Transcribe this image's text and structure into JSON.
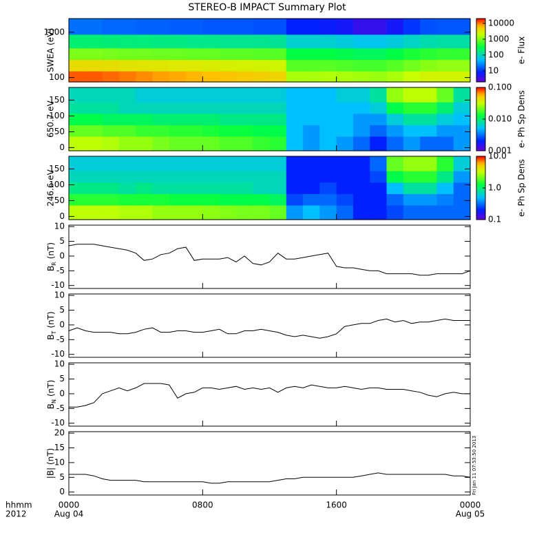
{
  "title": "STEREO-B IMPACT Summary Plot",
  "x_axis": {
    "xlim": [
      0,
      24
    ],
    "xticks": [
      {
        "value": 0,
        "label": "0000"
      },
      {
        "value": 8,
        "label": "0800"
      },
      {
        "value": 16,
        "label": "1600"
      },
      {
        "value": 24,
        "label": "0000"
      }
    ],
    "unit_label": "hhmm",
    "year": "2012",
    "start_date": "Aug 04",
    "end_date": "Aug 05"
  },
  "timestamp": "Fri Jan 11 07:53:50 2013",
  "chart_data": [
    {
      "type": "heatmap",
      "ylabel": "SWEA (eV)",
      "ylog": true,
      "ylim": [
        80,
        2000
      ],
      "yticks": [
        100,
        1000
      ],
      "xbins": [
        0,
        1,
        2,
        3,
        4,
        5,
        6,
        7,
        8,
        9,
        10,
        11,
        12,
        13,
        14,
        15,
        16,
        17,
        18,
        19,
        20,
        21,
        22,
        23,
        24
      ],
      "ybins": [
        80,
        140,
        250,
        450,
        900,
        2000
      ],
      "values": [
        [
          12000,
          12000,
          11000,
          10000,
          9000,
          8000,
          7500,
          7000,
          6500,
          6000,
          5500,
          5000,
          4500,
          1500,
          1500,
          1600,
          1500,
          1400,
          1300,
          1500,
          2000,
          2500,
          2500,
          2500
        ],
        [
          4000,
          4000,
          3800,
          3500,
          3300,
          3200,
          3000,
          3000,
          2800,
          2700,
          2600,
          2500,
          2400,
          700,
          700,
          700,
          650,
          600,
          600,
          700,
          900,
          1100,
          1200,
          1200
        ],
        [
          1000,
          1000,
          950,
          900,
          900,
          850,
          850,
          800,
          800,
          750,
          750,
          700,
          700,
          300,
          300,
          300,
          280,
          250,
          250,
          300,
          400,
          450,
          500,
          500
        ],
        [
          200,
          200,
          190,
          180,
          180,
          170,
          170,
          160,
          160,
          150,
          150,
          150,
          140,
          80,
          80,
          80,
          70,
          60,
          60,
          70,
          90,
          110,
          120,
          120
        ],
        [
          20,
          20,
          18,
          18,
          17,
          17,
          16,
          16,
          15,
          15,
          15,
          14,
          14,
          8,
          8,
          7,
          6,
          4,
          4,
          6,
          10,
          14,
          15,
          15
        ]
      ],
      "clim": [
        2,
        20000
      ],
      "clog": true,
      "cticks": [
        10,
        100,
        1000,
        10000
      ],
      "clabel": "e- Flux"
    },
    {
      "type": "heatmap",
      "ylabel": "650.7 eV",
      "ylog": false,
      "ylim": [
        -10,
        190
      ],
      "yticks": [
        0,
        50,
        100,
        150
      ],
      "xbins": [
        0,
        1,
        2,
        3,
        4,
        5,
        6,
        7,
        8,
        9,
        10,
        11,
        12,
        13,
        14,
        15,
        16,
        17,
        18,
        19,
        20,
        21,
        22,
        23,
        24
      ],
      "ybins": [
        -10,
        36,
        72,
        108,
        144,
        190
      ],
      "values": [
        [
          0.03,
          0.03,
          0.028,
          0.025,
          0.025,
          0.022,
          0.02,
          0.02,
          0.02,
          0.018,
          0.018,
          0.016,
          0.015,
          0.005,
          0.004,
          0.005,
          0.004,
          0.003,
          0.002,
          0.003,
          0.004,
          0.003,
          0.003,
          0.004
        ],
        [
          0.02,
          0.02,
          0.018,
          0.018,
          0.016,
          0.016,
          0.015,
          0.015,
          0.014,
          0.013,
          0.013,
          0.012,
          0.012,
          0.005,
          0.004,
          0.005,
          0.005,
          0.004,
          0.003,
          0.004,
          0.005,
          0.005,
          0.004,
          0.004
        ],
        [
          0.012,
          0.012,
          0.011,
          0.011,
          0.011,
          0.01,
          0.01,
          0.01,
          0.01,
          0.009,
          0.009,
          0.009,
          0.009,
          0.005,
          0.005,
          0.005,
          0.005,
          0.004,
          0.004,
          0.006,
          0.008,
          0.008,
          0.006,
          0.005
        ],
        [
          0.008,
          0.008,
          0.008,
          0.007,
          0.007,
          0.007,
          0.007,
          0.007,
          0.007,
          0.007,
          0.007,
          0.007,
          0.007,
          0.005,
          0.005,
          0.005,
          0.005,
          0.005,
          0.006,
          0.012,
          0.015,
          0.015,
          0.01,
          0.006
        ],
        [
          0.007,
          0.007,
          0.007,
          0.007,
          0.006,
          0.006,
          0.006,
          0.006,
          0.006,
          0.006,
          0.006,
          0.006,
          0.006,
          0.005,
          0.005,
          0.005,
          0.006,
          0.006,
          0.008,
          0.025,
          0.03,
          0.03,
          0.02,
          0.008
        ]
      ],
      "clim": [
        0.001,
        0.1
      ],
      "clog": true,
      "cticks": [
        {
          "value": 0.001,
          "label": "0.001"
        },
        {
          "value": 0.01,
          "label": "0.010"
        },
        {
          "value": 0.1,
          "label": "0.100"
        }
      ],
      "clabel": "e- Ph Sp Dens"
    },
    {
      "type": "heatmap",
      "ylabel": "246.6 eV",
      "ylog": false,
      "ylim": [
        -10,
        190
      ],
      "yticks": [
        0,
        50,
        100,
        150
      ],
      "xbins": [
        0,
        1,
        2,
        3,
        4,
        5,
        6,
        7,
        8,
        9,
        10,
        11,
        12,
        13,
        14,
        15,
        16,
        17,
        18,
        19,
        20,
        21,
        22,
        23,
        24
      ],
      "ybins": [
        -10,
        36,
        72,
        108,
        144,
        190
      ],
      "values": [
        [
          3,
          3,
          3,
          2.8,
          2.8,
          2.5,
          2.5,
          2.5,
          2.4,
          2.3,
          2.2,
          2.2,
          2,
          0.4,
          0.5,
          0.4,
          0.3,
          0.2,
          0.2,
          0.25,
          0.3,
          0.3,
          0.3,
          0.3
        ],
        [
          1.5,
          1.5,
          1.5,
          1.4,
          1.4,
          1.4,
          1.3,
          1.3,
          1.3,
          1.2,
          1.2,
          1.2,
          1.1,
          0.25,
          0.3,
          0.3,
          0.25,
          0.2,
          0.2,
          0.3,
          0.4,
          0.4,
          0.35,
          0.3
        ],
        [
          0.9,
          0.9,
          0.9,
          0.8,
          0.9,
          0.8,
          0.8,
          0.8,
          0.8,
          0.8,
          0.8,
          0.7,
          0.7,
          0.2,
          0.2,
          0.25,
          0.2,
          0.2,
          0.2,
          0.5,
          0.8,
          0.8,
          0.5,
          0.3
        ],
        [
          0.7,
          0.7,
          0.7,
          0.7,
          0.7,
          0.7,
          0.7,
          0.7,
          0.7,
          0.7,
          0.7,
          0.7,
          0.7,
          0.2,
          0.2,
          0.2,
          0.2,
          0.2,
          0.25,
          1.2,
          1.5,
          1.5,
          0.9,
          0.4
        ],
        [
          0.6,
          0.6,
          0.6,
          0.6,
          0.6,
          0.6,
          0.6,
          0.6,
          0.6,
          0.6,
          0.6,
          0.6,
          0.6,
          0.2,
          0.2,
          0.2,
          0.2,
          0.2,
          0.3,
          2,
          2.5,
          2.5,
          1.5,
          0.6
        ]
      ],
      "clim": [
        0.1,
        10
      ],
      "clog": true,
      "cticks": [
        0.1,
        {
          "value": 1,
          "label": "1.0"
        },
        {
          "value": 10,
          "label": "10.0"
        }
      ],
      "clabel": "e- Ph Sp Dens"
    },
    {
      "type": "line",
      "ylabel": {
        "symbol": "B",
        "sub": "R",
        "unit": "(nT)"
      },
      "ylim": [
        -11,
        10.5
      ],
      "yticks": [
        -10,
        -5,
        0,
        5,
        10
      ],
      "color": "#000000",
      "x": [
        0,
        0.5,
        1,
        1.5,
        2,
        2.5,
        3,
        3.5,
        4,
        4.5,
        5,
        5.5,
        6,
        6.5,
        7,
        7.5,
        8,
        8.5,
        9,
        9.5,
        10,
        10.5,
        11,
        11.5,
        12,
        12.5,
        13,
        13.5,
        14,
        14.5,
        15,
        15.5,
        16,
        16.5,
        17,
        17.5,
        18,
        18.5,
        19,
        19.5,
        20,
        20.5,
        21,
        21.5,
        22,
        22.5,
        23,
        23.5,
        24
      ],
      "values": [
        3.5,
        4,
        4,
        4,
        3.5,
        3,
        2.5,
        2,
        1,
        -1.5,
        -1,
        0.5,
        1,
        2.5,
        3,
        -1.5,
        -1,
        -1,
        -1,
        -0.5,
        -2,
        0,
        -2.5,
        -3,
        -2,
        1,
        -1,
        -1,
        -0.5,
        0,
        0.5,
        1,
        -3.5,
        -4,
        -4,
        -4.5,
        -5,
        -5,
        -6,
        -6,
        -6,
        -6,
        -6.5,
        -6.5,
        -6,
        -6,
        -6,
        -6,
        -5
      ]
    },
    {
      "type": "line",
      "ylabel": {
        "symbol": "B",
        "sub": "T",
        "unit": "(nT)"
      },
      "ylim": [
        -11,
        10.5
      ],
      "yticks": [
        -10,
        -5,
        0,
        5,
        10
      ],
      "color": "#000000",
      "x": [
        0,
        0.5,
        1,
        1.5,
        2,
        2.5,
        3,
        3.5,
        4,
        4.5,
        5,
        5.5,
        6,
        6.5,
        7,
        7.5,
        8,
        8.5,
        9,
        9.5,
        10,
        10.5,
        11,
        11.5,
        12,
        12.5,
        13,
        13.5,
        14,
        14.5,
        15,
        15.5,
        16,
        16.5,
        17,
        17.5,
        18,
        18.5,
        19,
        19.5,
        20,
        20.5,
        21,
        21.5,
        22,
        22.5,
        23,
        23.5,
        24
      ],
      "values": [
        -2,
        -1,
        -2,
        -2.5,
        -2.5,
        -2.5,
        -3,
        -3,
        -2.5,
        -1.5,
        -1,
        -2.5,
        -2.5,
        -2,
        -2,
        -2.5,
        -2.5,
        -2,
        -1.5,
        -3,
        -3,
        -2,
        -2,
        -1.5,
        -2,
        -2.5,
        -3.5,
        -4,
        -3.5,
        -4,
        -4.5,
        -4,
        -3,
        -0.5,
        0,
        0.5,
        0.5,
        1.5,
        2,
        1,
        1.5,
        0.5,
        1,
        1,
        1.5,
        2,
        1.5,
        1.5,
        1.5
      ]
    },
    {
      "type": "line",
      "ylabel": {
        "symbol": "B",
        "sub": "N",
        "unit": "(nT)"
      },
      "ylim": [
        -11,
        10.5
      ],
      "yticks": [
        -10,
        -5,
        0,
        5,
        10
      ],
      "color": "#000000",
      "x": [
        0,
        0.5,
        1,
        1.5,
        2,
        2.5,
        3,
        3.5,
        4,
        4.5,
        5,
        5.5,
        6,
        6.5,
        7,
        7.5,
        8,
        8.5,
        9,
        9.5,
        10,
        10.5,
        11,
        11.5,
        12,
        12.5,
        13,
        13.5,
        14,
        14.5,
        15,
        15.5,
        16,
        16.5,
        17,
        17.5,
        18,
        18.5,
        19,
        19.5,
        20,
        20.5,
        21,
        21.5,
        22,
        22.5,
        23,
        23.5,
        24
      ],
      "values": [
        -4.5,
        -4.5,
        -4,
        -3,
        0,
        1,
        2,
        1,
        2,
        3.5,
        3.5,
        3.5,
        3,
        -1.5,
        0,
        0.5,
        2,
        2,
        1.5,
        2,
        2.5,
        1.5,
        2,
        1.5,
        2,
        0.5,
        2,
        2.5,
        2,
        3,
        2.5,
        2,
        2,
        2.5,
        2,
        1.5,
        2,
        2,
        1.5,
        1.5,
        1.5,
        1,
        0.5,
        -0.5,
        -1,
        0,
        0.5,
        0,
        0
      ]
    },
    {
      "type": "line",
      "ylabel": "|B| (nT)",
      "ylim": [
        -1,
        20.5
      ],
      "yticks": [
        0,
        5,
        10,
        15,
        20
      ],
      "color": "#000000",
      "x": [
        0,
        0.5,
        1,
        1.5,
        2,
        2.5,
        3,
        3.5,
        4,
        4.5,
        5,
        5.5,
        6,
        6.5,
        7,
        7.5,
        8,
        8.5,
        9,
        9.5,
        10,
        10.5,
        11,
        11.5,
        12,
        12.5,
        13,
        13.5,
        14,
        14.5,
        15,
        15.5,
        16,
        16.5,
        17,
        17.5,
        18,
        18.5,
        19,
        19.5,
        20,
        20.5,
        21,
        21.5,
        22,
        22.5,
        23,
        23.5,
        24
      ],
      "values": [
        6,
        6,
        6,
        5.5,
        4.5,
        4,
        4,
        4,
        4,
        3.5,
        3.5,
        3.5,
        3.5,
        3.5,
        3.5,
        3.5,
        3.5,
        3,
        3,
        3.5,
        3.5,
        3.5,
        3.5,
        3.5,
        3.5,
        4,
        4.5,
        4.5,
        5,
        5,
        5,
        5,
        5,
        5,
        5,
        5.5,
        6,
        6.5,
        6,
        6,
        6,
        6,
        6,
        6,
        6,
        6,
        5.5,
        5.5,
        5
      ]
    }
  ]
}
